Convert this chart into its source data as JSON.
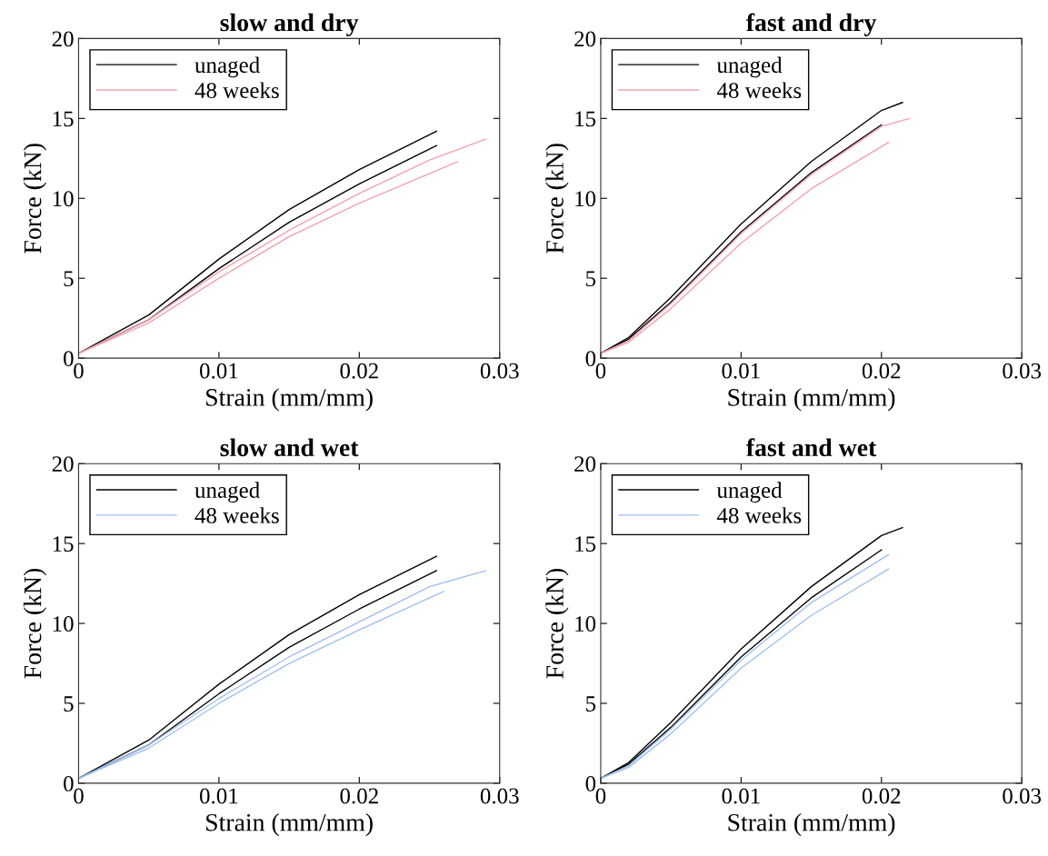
{
  "chart_data": [
    {
      "type": "line",
      "title": "slow and dry",
      "xlabel": "Strain (mm/mm)",
      "ylabel": "Force (kN)",
      "xlim": [
        0,
        0.03
      ],
      "ylim": [
        0,
        20
      ],
      "xticks": [
        0,
        0.01,
        0.02,
        0.03
      ],
      "yticks": [
        0,
        5,
        10,
        15,
        20
      ],
      "grid": false,
      "legend": "top left",
      "marker": "none",
      "line_style": "solid",
      "series": [
        {
          "name": "unaged",
          "color": "#000000",
          "x": [
            0,
            0.005,
            0.01,
            0.015,
            0.02,
            0.0255
          ],
          "values": [
            0.3,
            2.7,
            6.2,
            9.3,
            11.8,
            14.2
          ]
        },
        {
          "color": "#000000",
          "x": [
            0,
            0.005,
            0.01,
            0.015,
            0.02,
            0.0255
          ],
          "values": [
            0.3,
            2.4,
            5.6,
            8.5,
            10.9,
            13.3
          ]
        },
        {
          "name": "48 weeks",
          "color": "#f4a0b0",
          "x": [
            0,
            0.005,
            0.01,
            0.015,
            0.02,
            0.025,
            0.029
          ],
          "values": [
            0.3,
            2.4,
            5.4,
            8.0,
            10.3,
            12.4,
            13.7
          ]
        },
        {
          "color": "#f4a0b0",
          "x": [
            0,
            0.005,
            0.01,
            0.015,
            0.02,
            0.027
          ],
          "values": [
            0.3,
            2.2,
            5.0,
            7.6,
            9.7,
            12.3
          ]
        }
      ]
    },
    {
      "type": "line",
      "title": "fast and dry",
      "xlabel": "Strain (mm/mm)",
      "ylabel": "Force (kN)",
      "xlim": [
        0,
        0.03
      ],
      "ylim": [
        0,
        20
      ],
      "xticks": [
        0,
        0.01,
        0.02,
        0.03
      ],
      "yticks": [
        0,
        5,
        10,
        15,
        20
      ],
      "grid": false,
      "legend": "top left",
      "marker": "none",
      "line_style": "solid",
      "series": [
        {
          "name": "unaged",
          "color": "#000000",
          "x": [
            0,
            0.002,
            0.005,
            0.01,
            0.015,
            0.02,
            0.0215
          ],
          "values": [
            0.3,
            1.3,
            3.8,
            8.4,
            12.3,
            15.5,
            16.0
          ]
        },
        {
          "color": "#000000",
          "x": [
            0,
            0.002,
            0.005,
            0.01,
            0.015,
            0.02
          ],
          "values": [
            0.3,
            1.2,
            3.5,
            7.9,
            11.6,
            14.6
          ]
        },
        {
          "name": "48 weeks",
          "color": "#f4a0b0",
          "x": [
            0,
            0.002,
            0.005,
            0.01,
            0.015,
            0.02,
            0.022
          ],
          "values": [
            0.3,
            1.1,
            3.4,
            7.8,
            11.5,
            14.5,
            15.0
          ]
        },
        {
          "color": "#f4a0b0",
          "x": [
            0,
            0.002,
            0.005,
            0.01,
            0.015,
            0.0205
          ],
          "values": [
            0.3,
            1.0,
            3.1,
            7.2,
            10.6,
            13.5
          ]
        }
      ]
    },
    {
      "type": "line",
      "title": "slow and wet",
      "xlabel": "Strain (mm/mm)",
      "ylabel": "Force (kN)",
      "xlim": [
        0,
        0.03
      ],
      "ylim": [
        0,
        20
      ],
      "xticks": [
        0,
        0.01,
        0.02,
        0.03
      ],
      "yticks": [
        0,
        5,
        10,
        15,
        20
      ],
      "grid": false,
      "legend": "top left",
      "marker": "none",
      "line_style": "solid",
      "series": [
        {
          "name": "unaged",
          "color": "#000000",
          "x": [
            0,
            0.005,
            0.01,
            0.015,
            0.02,
            0.0255
          ],
          "values": [
            0.3,
            2.7,
            6.2,
            9.3,
            11.8,
            14.2
          ]
        },
        {
          "color": "#000000",
          "x": [
            0,
            0.005,
            0.01,
            0.015,
            0.02,
            0.0255
          ],
          "values": [
            0.3,
            2.4,
            5.6,
            8.5,
            10.9,
            13.3
          ]
        },
        {
          "name": "48 weeks",
          "color": "#9ec0f0",
          "x": [
            0,
            0.005,
            0.01,
            0.015,
            0.02,
            0.025,
            0.029
          ],
          "values": [
            0.3,
            2.4,
            5.3,
            7.9,
            10.1,
            12.3,
            13.3
          ]
        },
        {
          "color": "#9ec0f0",
          "x": [
            0,
            0.005,
            0.01,
            0.015,
            0.02,
            0.026
          ],
          "values": [
            0.3,
            2.2,
            5.0,
            7.5,
            9.6,
            12.0
          ]
        }
      ]
    },
    {
      "type": "line",
      "title": "fast and wet",
      "xlabel": "Strain (mm/mm)",
      "ylabel": "Force (kN)",
      "xlim": [
        0,
        0.03
      ],
      "ylim": [
        0,
        20
      ],
      "xticks": [
        0,
        0.01,
        0.02,
        0.03
      ],
      "yticks": [
        0,
        5,
        10,
        15,
        20
      ],
      "grid": false,
      "legend": "top left",
      "marker": "none",
      "line_style": "solid",
      "series": [
        {
          "name": "unaged",
          "color": "#000000",
          "x": [
            0,
            0.002,
            0.005,
            0.01,
            0.015,
            0.02,
            0.0215
          ],
          "values": [
            0.3,
            1.3,
            3.8,
            8.4,
            12.3,
            15.5,
            16.0
          ]
        },
        {
          "color": "#000000",
          "x": [
            0,
            0.002,
            0.005,
            0.01,
            0.015,
            0.02
          ],
          "values": [
            0.3,
            1.2,
            3.5,
            7.9,
            11.6,
            14.6
          ]
        },
        {
          "name": "48 weeks",
          "color": "#9ec0f0",
          "x": [
            0,
            0.002,
            0.005,
            0.01,
            0.015,
            0.0205
          ],
          "values": [
            0.3,
            1.1,
            3.4,
            7.7,
            11.3,
            14.3
          ]
        },
        {
          "color": "#9ec0f0",
          "x": [
            0,
            0.002,
            0.005,
            0.01,
            0.015,
            0.0205
          ],
          "values": [
            0.3,
            1.0,
            3.1,
            7.2,
            10.5,
            13.4
          ]
        }
      ]
    }
  ]
}
